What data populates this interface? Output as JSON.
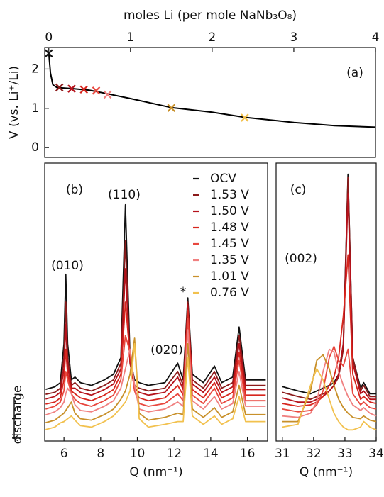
{
  "chart_data": [
    {
      "type": "line",
      "panel_label": "(a)",
      "xlabel": "moles Li (per mole NaNb₃O₈)",
      "ylabel": "V (vs. Li⁺/Li)",
      "xlim": [
        -0.05,
        4
      ],
      "xticks": [
        0,
        1,
        2,
        3,
        4
      ],
      "ylim": [
        -0.25,
        2.55
      ],
      "yticks": [
        0,
        1,
        2
      ],
      "x": [
        0,
        0.02,
        0.05,
        0.1,
        0.3,
        0.5,
        0.7,
        1.0,
        1.5,
        2.0,
        2.4,
        3.0,
        3.5,
        4.0
      ],
      "values": [
        2.4,
        1.9,
        1.6,
        1.53,
        1.5,
        1.46,
        1.38,
        1.25,
        1.02,
        0.9,
        0.77,
        0.64,
        0.56,
        0.52
      ],
      "color": "#000000",
      "markers": {
        "x": [
          0,
          0.13,
          0.28,
          0.43,
          0.58,
          0.72,
          1.5,
          2.4
        ],
        "values": [
          2.4,
          1.53,
          1.5,
          1.48,
          1.45,
          1.35,
          1.01,
          0.76
        ],
        "colors": [
          "#111111",
          "#8b1a1a",
          "#b5121b",
          "#d7261e",
          "#e8473e",
          "#f08080",
          "#c8902a",
          "#f2c14e"
        ]
      }
    },
    {
      "type": "line",
      "panel_label": "(b)",
      "xlabel": "Q (nm⁻¹)",
      "ylabel": "discharge",
      "xlim": [
        4.95,
        17.1
      ],
      "xticks": [
        6,
        8,
        10,
        12,
        14,
        16
      ],
      "ylim": [
        0,
        100
      ],
      "legend": "upper right",
      "annotations": [
        "(010)",
        "(110)",
        "(020)",
        "*"
      ],
      "x": [
        5,
        5.5,
        5.8,
        6.0,
        6.1,
        6.2,
        6.4,
        6.6,
        6.9,
        7.5,
        8.2,
        8.7,
        9.1,
        9.35,
        9.6,
        9.85,
        10.1,
        10.6,
        11.5,
        12.2,
        12.5,
        12.75,
        13.0,
        13.6,
        14.2,
        14.6,
        15.2,
        15.55,
        15.9,
        16.5,
        17
      ],
      "series": [
        {
          "name": "OCV",
          "color": "#111111",
          "values": [
            18.6,
            19.5,
            21,
            35,
            60,
            35,
            22,
            23,
            21,
            20,
            22,
            24,
            30,
            85,
            30,
            22,
            21,
            20,
            21,
            28,
            22,
            51.5,
            24,
            21,
            27,
            21,
            23,
            41,
            22,
            22,
            22
          ]
        },
        {
          "name": "1.53 V",
          "color": "#8b1a1a",
          "values": [
            16.8,
            17.5,
            19,
            30,
            50,
            30,
            20,
            21,
            19,
            18,
            20,
            22,
            28,
            72,
            28,
            20,
            19,
            18,
            19,
            25,
            20,
            50,
            22,
            19,
            25,
            19,
            21,
            38,
            20,
            20,
            20
          ]
        },
        {
          "name": "1.50 V",
          "color": "#b5121b",
          "values": [
            15.1,
            16,
            17.5,
            26,
            42,
            27,
            19,
            19,
            17.5,
            16.5,
            18.5,
            20.5,
            26,
            62,
            28,
            19,
            17.5,
            16.5,
            17.5,
            23,
            18.5,
            49,
            20.5,
            17.5,
            23,
            17.5,
            19.5,
            35,
            18.5,
            18.5,
            18.5
          ]
        },
        {
          "name": "1.48 V",
          "color": "#d7261e",
          "values": [
            13.3,
            14,
            15.5,
            22,
            33,
            24,
            18,
            17,
            15.5,
            14.5,
            16.5,
            18.5,
            24,
            50,
            30,
            18,
            15.5,
            14.5,
            15.5,
            20,
            16.5,
            47,
            18.5,
            15.5,
            21,
            15.5,
            17.5,
            32,
            16.5,
            16.5,
            16.5
          ]
        },
        {
          "name": "1.45 V",
          "color": "#e8473e",
          "values": [
            11.5,
            12.5,
            14,
            18,
            25,
            22,
            17,
            15,
            13.5,
            12.5,
            14.5,
            16.5,
            22,
            38,
            32,
            18,
            13.5,
            12.5,
            13.5,
            17,
            14.5,
            44,
            16.5,
            13.5,
            19,
            13.5,
            15.5,
            29,
            14.5,
            14.5,
            14.5
          ]
        },
        {
          "name": "1.35 V",
          "color": "#f08080",
          "values": [
            9.4,
            10.5,
            12,
            14,
            17,
            19,
            17,
            13,
            11,
            10.5,
            12.5,
            14.5,
            19,
            26,
            33,
            20,
            11.5,
            10.5,
            11.5,
            14,
            12.5,
            40,
            14.5,
            11.5,
            16,
            11.5,
            13.5,
            25,
            12.5,
            12.5,
            12.5
          ]
        },
        {
          "name": "1.01 V",
          "color": "#c8902a",
          "values": [
            6.6,
            7.5,
            9,
            10,
            11,
            12,
            14,
            10,
            8,
            7.5,
            9.5,
            11.5,
            15,
            18,
            24,
            37,
            10,
            7.5,
            8.5,
            10,
            9.5,
            35,
            11.5,
            8.5,
            12,
            8.5,
            10.5,
            20,
            9.5,
            9.5,
            9.5
          ]
        },
        {
          "name": "0.76 V",
          "color": "#f2c14e",
          "values": [
            4.1,
            5,
            6.5,
            7,
            7.5,
            8,
            9,
            7.5,
            5.5,
            5,
            7,
            9,
            12,
            14,
            18,
            35,
            8,
            5,
            6,
            7,
            7,
            30,
            9,
            6,
            9,
            6,
            8,
            16,
            7,
            7,
            7
          ]
        }
      ]
    },
    {
      "type": "line",
      "panel_label": "(c)",
      "xlabel": "Q (nm⁻¹)",
      "xlim": [
        30.8,
        34
      ],
      "xticks": [
        31,
        32,
        33,
        34
      ],
      "ylim": [
        0,
        100
      ],
      "annotations": [
        "(002)"
      ],
      "x": [
        31,
        31.5,
        31.9,
        32.1,
        32.3,
        32.5,
        32.65,
        32.8,
        32.95,
        33.1,
        33.25,
        33.5,
        33.6,
        33.8,
        34
      ],
      "series": [
        {
          "color": "#111111",
          "values": [
            19.6,
            18,
            17,
            18,
            19,
            20,
            21,
            24,
            35,
            96,
            30,
            19,
            21,
            17,
            17
          ]
        },
        {
          "color": "#8b1a1a",
          "values": [
            17.5,
            16,
            15,
            16,
            17,
            18,
            20,
            23,
            33,
            95,
            30,
            18,
            20,
            16,
            16
          ]
        },
        {
          "color": "#b5121b",
          "values": [
            15.5,
            14,
            14,
            15,
            16,
            18,
            20,
            24,
            35,
            89,
            28,
            17,
            18,
            15,
            15
          ]
        },
        {
          "color": "#d7261e",
          "values": [
            13.5,
            12.5,
            13,
            14,
            16,
            20,
            23,
            30,
            45,
            67,
            24,
            15,
            16,
            14,
            13.5
          ]
        },
        {
          "color": "#e8473e",
          "values": [
            11.5,
            10.5,
            11,
            13,
            18,
            30,
            34,
            29,
            27,
            33,
            17,
            13,
            14,
            12,
            11.5
          ]
        },
        {
          "color": "#f08080",
          "values": [
            9,
            8.5,
            10,
            14,
            25,
            33,
            32,
            25,
            20,
            16,
            13,
            11,
            12,
            10,
            9
          ]
        },
        {
          "color": "#c8902a",
          "values": [
            7,
            7,
            18,
            29,
            31,
            26,
            20,
            15,
            12,
            10,
            8.5,
            8,
            9,
            7.5,
            7
          ]
        },
        {
          "color": "#f2c14e",
          "values": [
            5,
            6,
            20,
            26,
            22,
            15,
            10,
            7,
            5,
            4,
            4,
            5,
            7,
            5,
            4
          ]
        }
      ]
    }
  ]
}
